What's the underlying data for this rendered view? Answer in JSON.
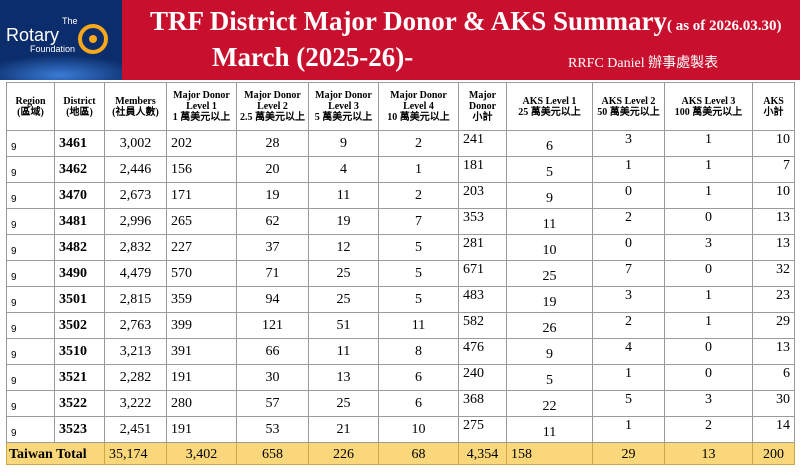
{
  "header": {
    "logo": {
      "the": "The",
      "rotary": "Rotary",
      "foundation": "Foundation"
    },
    "title_line1": "TRF District Major Donor & AKS Summary",
    "as_of": "( as of 2026.03.30)",
    "title_line2": "March (2025-26)-",
    "credit": "RRFC Daniel 辦事處製表",
    "colors": {
      "banner": "#c8102e",
      "logo_bg": "#0b2d6b",
      "total_row": "#f9d77a"
    }
  },
  "table": {
    "columns": [
      {
        "key": "region",
        "label": "Region",
        "sub": "(區域)"
      },
      {
        "key": "district",
        "label": "District",
        "sub": "(地區)"
      },
      {
        "key": "members",
        "label": "Members",
        "sub": "(社員人數)"
      },
      {
        "key": "md1",
        "label": "Major Donor",
        "label2": "Level 1",
        "sub": "1 萬美元以上"
      },
      {
        "key": "md2",
        "label": "Major Donor",
        "label2": "Level 2",
        "sub": "2.5 萬美元以上"
      },
      {
        "key": "md3",
        "label": "Major Donor",
        "label2": "Level 3",
        "sub": "5 萬美元以上"
      },
      {
        "key": "md4",
        "label": "Major Donor",
        "label2": "Level 4",
        "sub": "10 萬美元以上"
      },
      {
        "key": "md_total",
        "label": "Major",
        "label2": "Donor",
        "sub": "小計"
      },
      {
        "key": "aks1",
        "label": "AKS Level 1",
        "sub": "25 萬美元以上"
      },
      {
        "key": "aks2",
        "label": "AKS Level 2",
        "sub": "50 萬美元以上"
      },
      {
        "key": "aks3",
        "label": "AKS Level 3",
        "sub": "100 萬美元以上"
      },
      {
        "key": "aks_total",
        "label": "AKS",
        "sub": "小計"
      }
    ],
    "rows": [
      {
        "region": "9",
        "district": "3461",
        "members": "3,002",
        "md1": "202",
        "md2": "28",
        "md3": "9",
        "md4": "2",
        "md_total": "241",
        "aks1": "6",
        "aks2": "3",
        "aks3": "1",
        "aks_total": "10"
      },
      {
        "region": "9",
        "district": "3462",
        "members": "2,446",
        "md1": "156",
        "md2": "20",
        "md3": "4",
        "md4": "1",
        "md_total": "181",
        "aks1": "5",
        "aks2": "1",
        "aks3": "1",
        "aks_total": "7"
      },
      {
        "region": "9",
        "district": "3470",
        "members": "2,673",
        "md1": "171",
        "md2": "19",
        "md3": "11",
        "md4": "2",
        "md_total": "203",
        "aks1": "9",
        "aks2": "0",
        "aks3": "1",
        "aks_total": "10"
      },
      {
        "region": "9",
        "district": "3481",
        "members": "2,996",
        "md1": "265",
        "md2": "62",
        "md3": "19",
        "md4": "7",
        "md_total": "353",
        "aks1": "11",
        "aks2": "2",
        "aks3": "0",
        "aks_total": "13"
      },
      {
        "region": "9",
        "district": "3482",
        "members": "2,832",
        "md1": "227",
        "md2": "37",
        "md3": "12",
        "md4": "5",
        "md_total": "281",
        "aks1": "10",
        "aks2": "0",
        "aks3": "3",
        "aks_total": "13"
      },
      {
        "region": "9",
        "district": "3490",
        "members": "4,479",
        "md1": "570",
        "md2": "71",
        "md3": "25",
        "md4": "5",
        "md_total": "671",
        "aks1": "25",
        "aks2": "7",
        "aks3": "0",
        "aks_total": "32"
      },
      {
        "region": "9",
        "district": "3501",
        "members": "2,815",
        "md1": "359",
        "md2": "94",
        "md3": "25",
        "md4": "5",
        "md_total": "483",
        "aks1": "19",
        "aks2": "3",
        "aks3": "1",
        "aks_total": "23"
      },
      {
        "region": "9",
        "district": "3502",
        "members": "2,763",
        "md1": "399",
        "md2": "121",
        "md3": "51",
        "md4": "11",
        "md_total": "582",
        "aks1": "26",
        "aks2": "2",
        "aks3": "1",
        "aks_total": "29"
      },
      {
        "region": "9",
        "district": "3510",
        "members": "3,213",
        "md1": "391",
        "md2": "66",
        "md3": "11",
        "md4": "8",
        "md_total": "476",
        "aks1": "9",
        "aks2": "4",
        "aks3": "0",
        "aks_total": "13"
      },
      {
        "region": "9",
        "district": "3521",
        "members": "2,282",
        "md1": "191",
        "md2": "30",
        "md3": "13",
        "md4": "6",
        "md_total": "240",
        "aks1": "5",
        "aks2": "1",
        "aks3": "0",
        "aks_total": "6"
      },
      {
        "region": "9",
        "district": "3522",
        "members": "3,222",
        "md1": "280",
        "md2": "57",
        "md3": "25",
        "md4": "6",
        "md_total": "368",
        "aks1": "22",
        "aks2": "5",
        "aks3": "3",
        "aks_total": "30"
      },
      {
        "region": "9",
        "district": "3523",
        "members": "2,451",
        "md1": "191",
        "md2": "53",
        "md3": "21",
        "md4": "10",
        "md_total": "275",
        "aks1": "11",
        "aks2": "1",
        "aks3": "2",
        "aks_total": "14"
      }
    ],
    "total": {
      "label": "Taiwan Total",
      "members": "35,174",
      "md1": "3,402",
      "md2": "658",
      "md3": "226",
      "md4": "68",
      "md_total": "4,354",
      "aks1": "158",
      "aks2": "29",
      "aks3": "13",
      "aks_total": "200"
    }
  }
}
